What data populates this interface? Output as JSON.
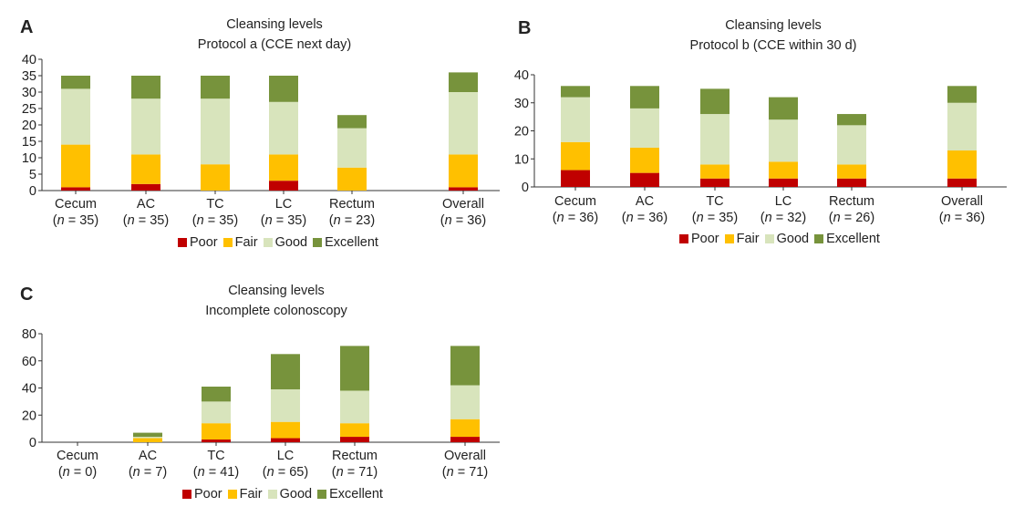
{
  "colors": {
    "Poor": "#c00000",
    "Fair": "#ffc000",
    "Good": "#d8e4bc",
    "Excellent": "#77933c"
  },
  "legend_labels": [
    "Poor",
    "Fair",
    "Good",
    "Excellent"
  ],
  "chart_data": [
    {
      "panel_label": "A",
      "type": "bar",
      "stacked": true,
      "title": "Cleansing levels",
      "subtitle": "Protocol a (CCE next day)",
      "categories": [
        "Cecum",
        "AC",
        "TC",
        "LC",
        "Rectum",
        "Overall"
      ],
      "n_values": [
        35,
        35,
        35,
        35,
        23,
        36
      ],
      "ylim": [
        0,
        40
      ],
      "yticks": [
        0,
        5,
        10,
        15,
        20,
        25,
        30,
        35,
        40
      ],
      "legend": "bottom",
      "series": [
        {
          "name": "Poor",
          "values": [
            1,
            2,
            0,
            3,
            0,
            1
          ]
        },
        {
          "name": "Fair",
          "values": [
            13,
            9,
            8,
            8,
            7,
            10
          ]
        },
        {
          "name": "Good",
          "values": [
            17,
            17,
            20,
            16,
            12,
            19
          ]
        },
        {
          "name": "Excellent",
          "values": [
            4,
            7,
            7,
            8,
            4,
            6
          ]
        }
      ]
    },
    {
      "panel_label": "B",
      "type": "bar",
      "stacked": true,
      "title": "Cleansing levels",
      "subtitle": "Protocol b (CCE within 30 d)",
      "categories": [
        "Cecum",
        "AC",
        "TC",
        "LC",
        "Rectum",
        "Overall"
      ],
      "n_values": [
        36,
        36,
        35,
        32,
        26,
        36
      ],
      "ylim": [
        0,
        40
      ],
      "yticks": [
        0,
        10,
        20,
        30,
        40
      ],
      "legend": "bottom",
      "series": [
        {
          "name": "Poor",
          "values": [
            6,
            5,
            3,
            3,
            3,
            3
          ]
        },
        {
          "name": "Fair",
          "values": [
            10,
            9,
            5,
            6,
            5,
            10
          ]
        },
        {
          "name": "Good",
          "values": [
            16,
            14,
            18,
            15,
            14,
            17
          ]
        },
        {
          "name": "Excellent",
          "values": [
            4,
            8,
            9,
            8,
            4,
            6
          ]
        }
      ]
    },
    {
      "panel_label": "C",
      "type": "bar",
      "stacked": true,
      "title": "Cleansing levels",
      "subtitle": "Incomplete colonoscopy",
      "categories": [
        "Cecum",
        "AC",
        "TC",
        "LC",
        "Rectum",
        "Overall"
      ],
      "n_values": [
        0,
        7,
        41,
        65,
        71,
        71
      ],
      "ylim": [
        0,
        80
      ],
      "yticks": [
        0,
        20,
        40,
        60,
        80
      ],
      "legend": "bottom",
      "series": [
        {
          "name": "Poor",
          "values": [
            0,
            0,
            2,
            3,
            4,
            4
          ]
        },
        {
          "name": "Fair",
          "values": [
            0,
            3,
            12,
            12,
            10,
            13
          ]
        },
        {
          "name": "Good",
          "values": [
            0,
            1,
            16,
            24,
            24,
            25
          ]
        },
        {
          "name": "Excellent",
          "values": [
            0,
            3,
            11,
            26,
            33,
            29
          ]
        }
      ]
    }
  ]
}
